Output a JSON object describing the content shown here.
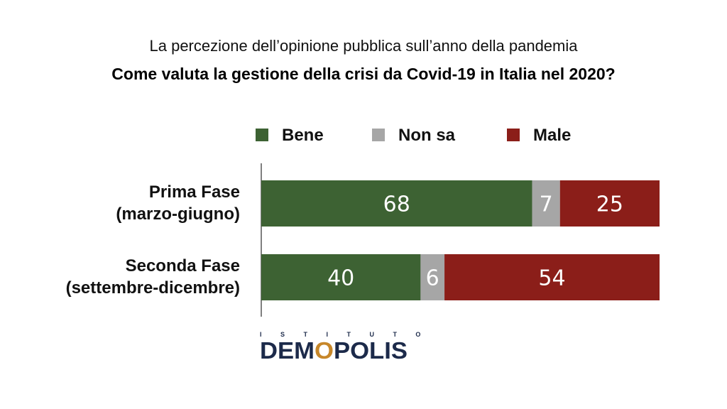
{
  "header": {
    "subtitle": "La percezione dell’opinione pubblica sull’anno della pandemia",
    "title": "Come valuta la gestione della crisi da Covid-19 in Italia nel 2020?"
  },
  "chart_data": {
    "type": "bar",
    "orientation": "horizontal",
    "stacked": true,
    "title": "Come valuta la gestione della crisi da Covid-19 in Italia nel 2020?",
    "subtitle": "La percezione dell’opinione pubblica sull’anno della pandemia",
    "categories": [
      [
        "Prima Fase",
        "(marzo-giugno)"
      ],
      [
        "Seconda Fase",
        "(settembre-dicembre)"
      ]
    ],
    "series": [
      {
        "name": "Bene",
        "color": "#3d6233",
        "values": [
          68,
          40
        ]
      },
      {
        "name": "Non sa",
        "color": "#a6a6a6",
        "values": [
          7,
          6
        ]
      },
      {
        "name": "Male",
        "color": "#8b1e19",
        "values": [
          25,
          54
        ]
      }
    ],
    "xlim": [
      0,
      100
    ],
    "grid": false,
    "legend_position": "top"
  },
  "logo": {
    "top_text": "ISTITUTO",
    "main_text_before": "DEM",
    "main_text_o": "O",
    "main_text_after": "POLIS"
  }
}
